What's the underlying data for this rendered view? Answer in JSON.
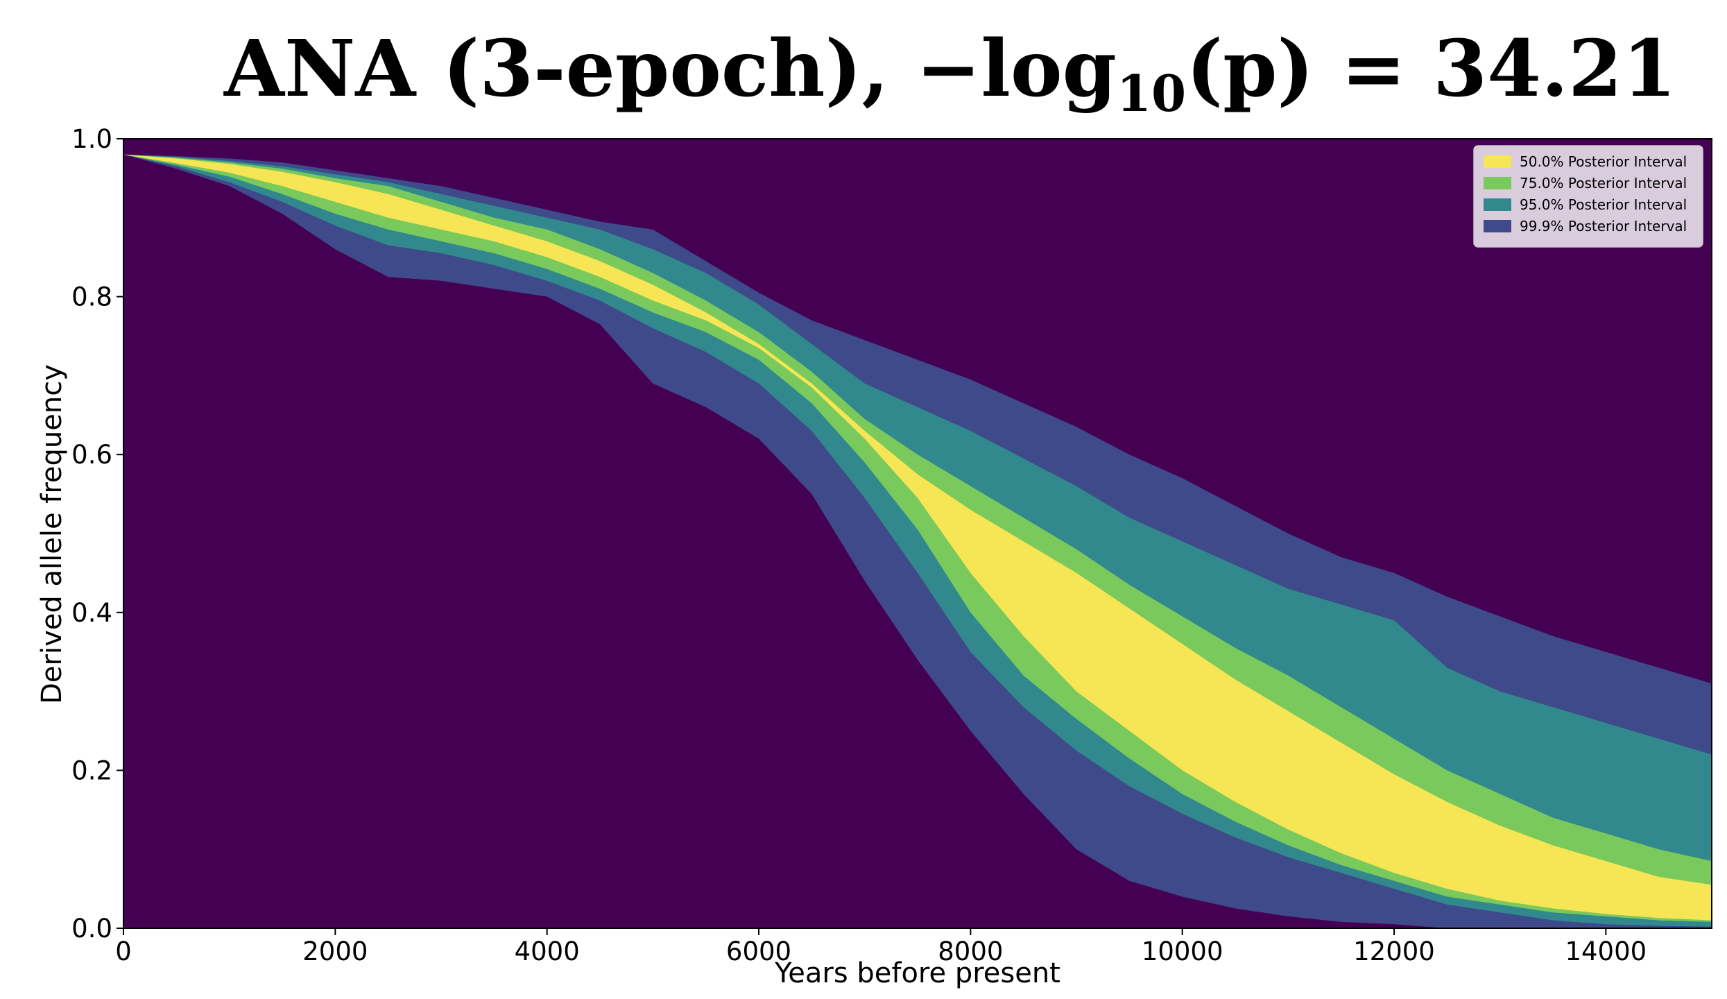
{
  "chart_data": {
    "type": "area",
    "title": {
      "prefix": "ANA (3-epoch), −log",
      "subscript": "10",
      "suffix": "(p) = 34.21"
    },
    "xlabel": "Years before present",
    "ylabel": "Derived allele frequency",
    "xlim": [
      0,
      15000
    ],
    "ylim": [
      0,
      1
    ],
    "xticks": [
      0,
      2000,
      4000,
      6000,
      8000,
      10000,
      12000,
      14000
    ],
    "yticks": [
      0.0,
      0.2,
      0.4,
      0.6,
      0.8,
      1.0
    ],
    "grid": false,
    "legend_position": "top-right",
    "colors": {
      "background": "#440154",
      "band_99_9": "#3e4a89",
      "band_95": "#31898d",
      "band_75": "#7ac95c",
      "band_50": "#f6e555"
    },
    "x": [
      0,
      500,
      1000,
      1500,
      2000,
      2500,
      3000,
      3500,
      4000,
      4500,
      5000,
      5500,
      6000,
      6500,
      7000,
      7500,
      8000,
      8500,
      9000,
      9500,
      10000,
      10500,
      11000,
      11500,
      12000,
      12500,
      13000,
      13500,
      14000,
      14500,
      15000
    ],
    "series": [
      {
        "name": "99.9% Posterior Interval",
        "upper": [
          0.98,
          0.978,
          0.975,
          0.97,
          0.96,
          0.95,
          0.94,
          0.925,
          0.91,
          0.895,
          0.885,
          0.845,
          0.805,
          0.77,
          0.745,
          0.72,
          0.695,
          0.665,
          0.635,
          0.6,
          0.57,
          0.535,
          0.5,
          0.47,
          0.45,
          0.42,
          0.395,
          0.37,
          0.35,
          0.33,
          0.31
        ],
        "lower": [
          0.98,
          0.962,
          0.94,
          0.905,
          0.86,
          0.825,
          0.82,
          0.81,
          0.8,
          0.765,
          0.69,
          0.66,
          0.62,
          0.55,
          0.44,
          0.34,
          0.25,
          0.17,
          0.1,
          0.06,
          0.04,
          0.025,
          0.015,
          0.008,
          0.005,
          0.0,
          0.0,
          0.0,
          0.0,
          0.0,
          0.0
        ]
      },
      {
        "name": "95.0% Posterior Interval",
        "upper": [
          0.98,
          0.977,
          0.972,
          0.965,
          0.955,
          0.945,
          0.93,
          0.915,
          0.9,
          0.885,
          0.86,
          0.83,
          0.79,
          0.74,
          0.69,
          0.66,
          0.63,
          0.595,
          0.56,
          0.52,
          0.49,
          0.46,
          0.43,
          0.41,
          0.39,
          0.33,
          0.3,
          0.28,
          0.26,
          0.24,
          0.22
        ],
        "lower": [
          0.98,
          0.965,
          0.945,
          0.92,
          0.89,
          0.865,
          0.855,
          0.84,
          0.82,
          0.795,
          0.76,
          0.73,
          0.69,
          0.63,
          0.545,
          0.45,
          0.35,
          0.28,
          0.225,
          0.18,
          0.145,
          0.115,
          0.09,
          0.07,
          0.05,
          0.03,
          0.02,
          0.01,
          0.005,
          0.003,
          0.002
        ]
      },
      {
        "name": "75.0% Posterior Interval",
        "upper": [
          0.98,
          0.976,
          0.97,
          0.962,
          0.95,
          0.94,
          0.92,
          0.9,
          0.885,
          0.86,
          0.83,
          0.795,
          0.755,
          0.705,
          0.645,
          0.6,
          0.56,
          0.52,
          0.48,
          0.435,
          0.395,
          0.355,
          0.32,
          0.28,
          0.24,
          0.2,
          0.17,
          0.14,
          0.12,
          0.1,
          0.085
        ],
        "lower": [
          0.98,
          0.967,
          0.952,
          0.93,
          0.905,
          0.885,
          0.87,
          0.855,
          0.835,
          0.81,
          0.78,
          0.755,
          0.72,
          0.665,
          0.59,
          0.505,
          0.4,
          0.32,
          0.265,
          0.215,
          0.17,
          0.135,
          0.105,
          0.08,
          0.06,
          0.04,
          0.03,
          0.02,
          0.015,
          0.01,
          0.008
        ]
      },
      {
        "name": "50.0% Posterior Interval",
        "upper": [
          0.98,
          0.975,
          0.968,
          0.958,
          0.945,
          0.93,
          0.91,
          0.89,
          0.87,
          0.845,
          0.815,
          0.78,
          0.74,
          0.69,
          0.63,
          0.575,
          0.53,
          0.49,
          0.45,
          0.405,
          0.36,
          0.315,
          0.275,
          0.235,
          0.195,
          0.16,
          0.13,
          0.105,
          0.085,
          0.065,
          0.055
        ],
        "lower": [
          0.98,
          0.969,
          0.957,
          0.94,
          0.92,
          0.9,
          0.885,
          0.87,
          0.85,
          0.825,
          0.795,
          0.77,
          0.735,
          0.685,
          0.62,
          0.545,
          0.45,
          0.37,
          0.3,
          0.25,
          0.2,
          0.16,
          0.125,
          0.095,
          0.07,
          0.05,
          0.035,
          0.025,
          0.018,
          0.013,
          0.01
        ]
      }
    ],
    "legend": [
      {
        "label": "50.0% Posterior Interval",
        "color": "#f6e555"
      },
      {
        "label": "75.0% Posterior Interval",
        "color": "#7ac95c"
      },
      {
        "label": "95.0% Posterior Interval",
        "color": "#31898d"
      },
      {
        "label": "99.9% Posterior Interval",
        "color": "#3e4a89"
      }
    ]
  }
}
